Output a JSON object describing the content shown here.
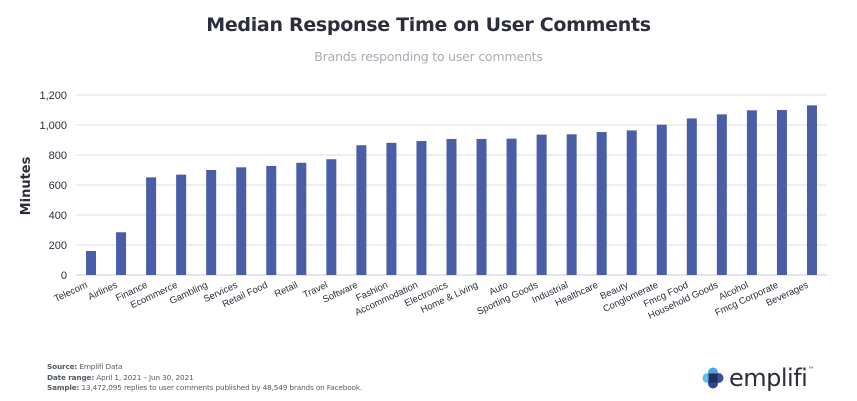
{
  "header": {
    "title": "Median Response Time on User Comments",
    "subtitle": "Brands responding to user comments"
  },
  "chart_data": {
    "type": "bar",
    "title": "Median Response Time on User Comments",
    "subtitle": "Brands responding to user comments",
    "xlabel": "",
    "ylabel": "Minutes",
    "ylim": [
      0,
      1200
    ],
    "yticks": [
      0,
      200,
      400,
      600,
      800,
      1000,
      1200
    ],
    "ytick_labels": [
      "0",
      "200",
      "400",
      "600",
      "800",
      "1,000",
      "1,200"
    ],
    "grid": true,
    "legend": "none",
    "categories": [
      "Telecom",
      "Airlines",
      "Finance",
      "Ecommerce",
      "Gambling",
      "Services",
      "Retail Food",
      "Retail",
      "Travel",
      "Software",
      "Fashion",
      "Accommodation",
      "Electronics",
      "Home & Living",
      "Auto",
      "Sporting Goods",
      "Industrial",
      "Healthcare",
      "Beauty",
      "Conglomerate",
      "Fmcg Food",
      "Household Goods",
      "Alcohol",
      "Fmcg Corporate",
      "Beverages"
    ],
    "values": [
      160,
      285,
      651,
      669,
      700,
      718,
      727,
      748,
      772,
      865,
      881,
      893,
      907,
      907,
      909,
      936,
      938,
      953,
      964,
      1002,
      1044,
      1071,
      1098,
      1100,
      1131
    ],
    "bar_color": "#4a5ea8",
    "grid_color": "#dcdde8"
  },
  "footer": {
    "source_label": "Source:",
    "source_value": " Emplifi Data",
    "date_label": "Date range:",
    "date_value": " April 1, 2021 – Jun 30, 2021",
    "sample_label": "Sample:",
    "sample_value": " 13,472,095 replies to user comments published by 48,549 brands on Facebook."
  },
  "logo": {
    "text": "emplifi",
    "tm": "™",
    "colors": {
      "top": "#4aa6e0",
      "left": "#5cc0ec",
      "center": "#1e3160",
      "right": "#3d4f9e",
      "bottom": "#34458f"
    }
  }
}
